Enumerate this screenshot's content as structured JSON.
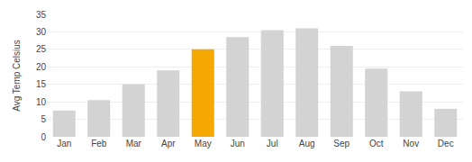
{
  "chart_data": {
    "type": "bar",
    "categories": [
      "Jan",
      "Feb",
      "Mar",
      "Apr",
      "May",
      "Jun",
      "Jul",
      "Aug",
      "Sep",
      "Oct",
      "Nov",
      "Dec"
    ],
    "values": [
      7.5,
      10.5,
      15,
      19,
      25,
      28.5,
      30.5,
      31,
      26,
      19.5,
      13,
      8
    ],
    "colors": [
      "#d3d3d3",
      "#d3d3d3",
      "#d3d3d3",
      "#d3d3d3",
      "#f5a800",
      "#d3d3d3",
      "#d3d3d3",
      "#d3d3d3",
      "#d3d3d3",
      "#d3d3d3",
      "#d3d3d3",
      "#d3d3d3"
    ],
    "ylabel": "Avg Temp Celsius",
    "ylim": [
      0,
      35
    ],
    "yticks": [
      0,
      5,
      10,
      15,
      20,
      25,
      30,
      35
    ],
    "grid": true
  }
}
